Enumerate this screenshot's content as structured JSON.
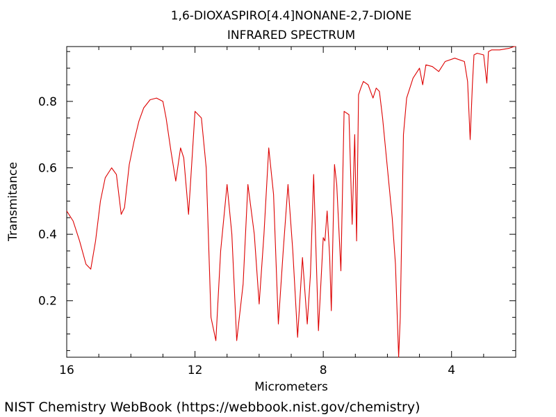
{
  "chart_data": {
    "type": "line",
    "title": "1,6-DIOXASPIRO[4.4]NONANE-2,7-DIONE",
    "subtitle": "INFRARED SPECTRUM",
    "xlabel": "Micrometers",
    "ylabel": "Transmitance",
    "xlim": [
      16,
      2
    ],
    "ylim": [
      0.03,
      0.965
    ],
    "x_reversed": true,
    "x_ticks": [
      "16",
      "12",
      "8",
      "4"
    ],
    "y_ticks": [
      "0.2",
      "0.4",
      "0.6",
      "0.8"
    ],
    "grid": false,
    "line_color": "#dd0000",
    "series": [
      {
        "x": [
          16.0,
          15.8,
          15.6,
          15.4,
          15.25,
          15.1,
          14.95,
          14.8,
          14.6,
          14.45,
          14.3,
          14.2,
          14.05,
          13.9,
          13.75,
          13.6,
          13.4,
          13.2,
          13.0,
          12.9,
          12.75,
          12.6,
          12.45,
          12.35,
          12.2,
          12.0,
          11.8,
          11.65,
          11.5,
          11.35,
          11.2,
          11.0,
          10.85,
          10.7,
          10.5,
          10.35,
          10.15,
          10.0,
          9.85,
          9.7,
          9.55,
          9.4,
          9.25,
          9.1,
          8.95,
          8.8,
          8.65,
          8.5,
          8.4,
          8.3,
          8.15,
          8.0,
          7.95,
          7.88,
          7.8,
          7.75,
          7.65,
          7.58,
          7.45,
          7.35,
          7.2,
          7.1,
          7.02,
          6.96,
          6.9,
          6.83,
          6.75,
          6.6,
          6.45,
          6.35,
          6.25,
          6.15,
          6.0,
          5.85,
          5.75,
          5.65,
          5.6,
          5.5,
          5.4,
          5.2,
          5.0,
          4.9,
          4.8,
          4.6,
          4.4,
          4.2,
          3.9,
          3.6,
          3.5,
          3.42,
          3.35,
          3.3,
          3.2,
          3.0,
          2.9,
          2.85,
          2.75,
          2.5,
          2.2,
          2.05,
          2.0
        ],
        "y": [
          0.47,
          0.44,
          0.38,
          0.31,
          0.295,
          0.38,
          0.5,
          0.57,
          0.6,
          0.58,
          0.46,
          0.48,
          0.61,
          0.68,
          0.74,
          0.78,
          0.805,
          0.81,
          0.8,
          0.75,
          0.65,
          0.56,
          0.66,
          0.63,
          0.46,
          0.77,
          0.75,
          0.6,
          0.15,
          0.08,
          0.35,
          0.55,
          0.4,
          0.08,
          0.25,
          0.55,
          0.4,
          0.19,
          0.4,
          0.66,
          0.52,
          0.13,
          0.35,
          0.55,
          0.35,
          0.09,
          0.33,
          0.13,
          0.28,
          0.58,
          0.11,
          0.39,
          0.38,
          0.47,
          0.33,
          0.17,
          0.61,
          0.55,
          0.29,
          0.77,
          0.76,
          0.43,
          0.7,
          0.38,
          0.82,
          0.84,
          0.86,
          0.85,
          0.81,
          0.84,
          0.83,
          0.75,
          0.6,
          0.45,
          0.31,
          0.03,
          0.15,
          0.7,
          0.81,
          0.87,
          0.9,
          0.85,
          0.91,
          0.905,
          0.89,
          0.92,
          0.93,
          0.92,
          0.86,
          0.685,
          0.85,
          0.94,
          0.945,
          0.94,
          0.855,
          0.95,
          0.955,
          0.955,
          0.96,
          0.965,
          0.965
        ]
      }
    ]
  },
  "footer": {
    "credit": "NIST Chemistry WebBook (https://webbook.nist.gov/chemistry)"
  }
}
